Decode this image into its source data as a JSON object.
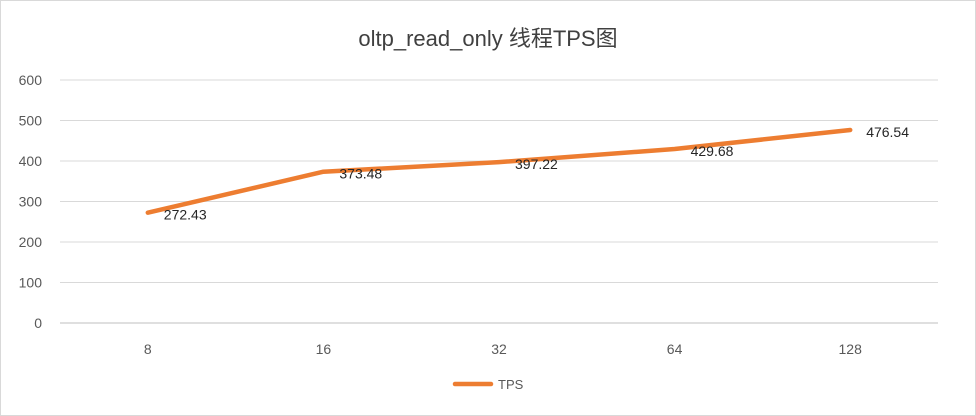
{
  "chart_data": {
    "type": "line",
    "title": "oltp_read_only 线程TPS图",
    "categories": [
      "8",
      "16",
      "32",
      "64",
      "128"
    ],
    "series": [
      {
        "name": "TPS",
        "values": [
          272.43,
          373.48,
          397.22,
          429.68,
          476.54
        ],
        "data_labels": [
          "272.43",
          "373.48",
          "397.22",
          "429.68",
          "476.54"
        ],
        "color": "#ED7D31"
      }
    ],
    "yticks": [
      "0",
      "100",
      "200",
      "300",
      "400",
      "500",
      "600"
    ],
    "ylim": [
      0,
      600
    ],
    "grid": true,
    "legend_position": "bottom"
  }
}
